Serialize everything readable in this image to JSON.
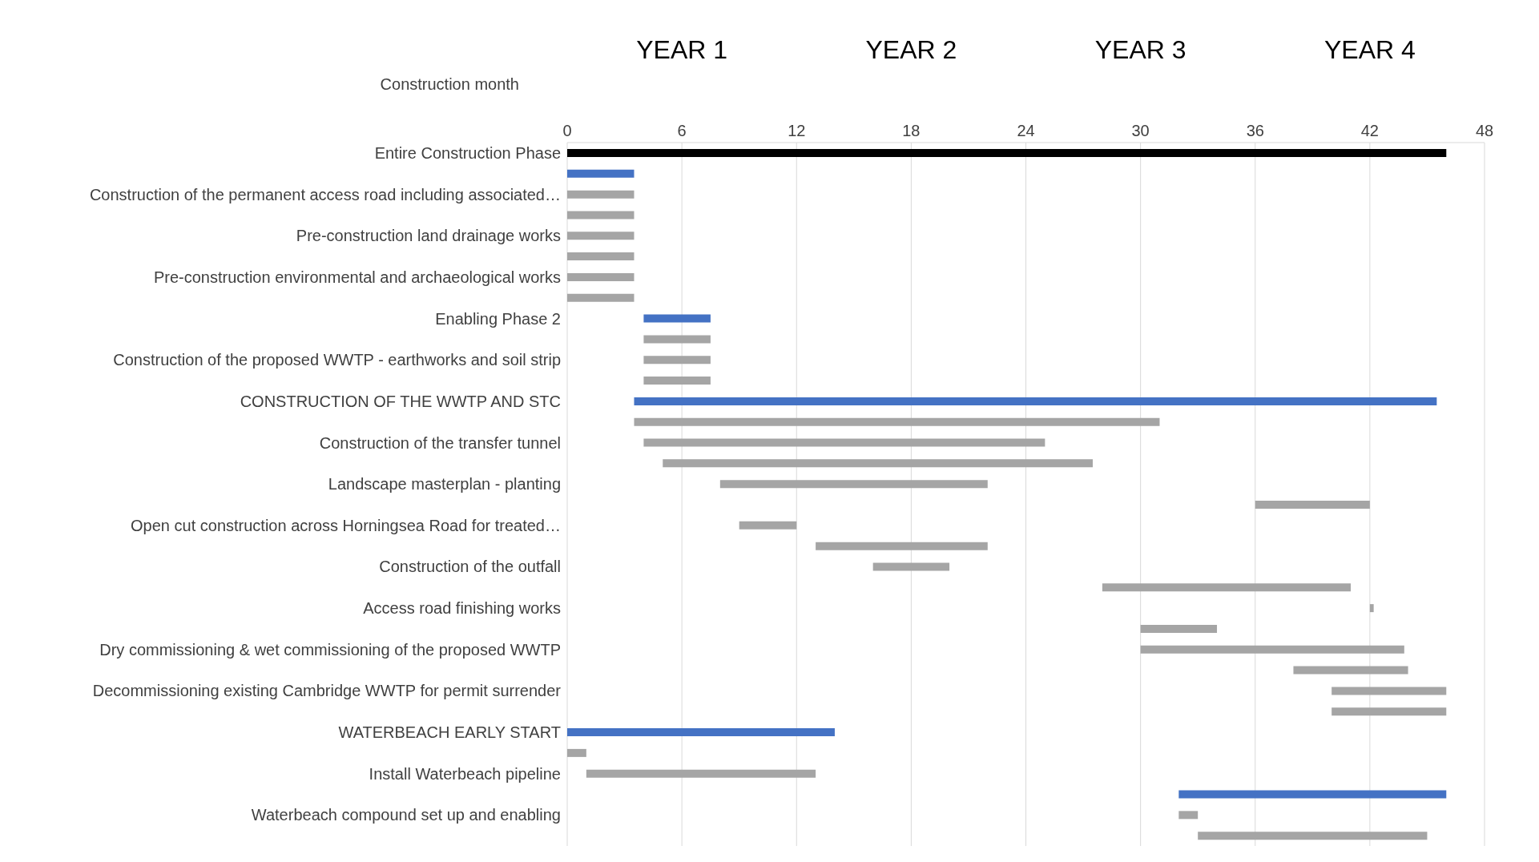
{
  "chart_data": {
    "type": "bar",
    "orientation": "horizontal",
    "xlabel": "Construction month",
    "annotations": [
      "YEAR 1",
      "YEAR 2",
      "YEAR 3",
      "YEAR 4"
    ],
    "categories": [
      "Entire Construction Phase",
      null,
      "Construction of the permanent access road including associated…",
      null,
      "Pre-construction land drainage works",
      null,
      "Pre-construction environmental and archaeological works",
      null,
      "Enabling Phase 2",
      null,
      "Construction of the proposed WWTP - earthworks and soil strip",
      null,
      "CONSTRUCTION OF THE WWTP AND STC",
      null,
      "Construction of the transfer tunnel",
      null,
      "Landscape masterplan - planting",
      null,
      "Open cut construction across Horningsea Road for treated…",
      null,
      "Construction of the outfall",
      null,
      "Access road finishing works",
      null,
      "Dry commissioning & wet commissioning of the proposed WWTP",
      null,
      "Decommissioning existing Cambridge WWTP for permit surrender",
      null,
      "WATERBEACH EARLY START",
      null,
      "Install Waterbeach pipeline",
      null,
      "Waterbeach compound set up and enabling",
      null
    ],
    "base": [
      0,
      0,
      0,
      0,
      0,
      0,
      0,
      0,
      4,
      4,
      4,
      4,
      3.5,
      3.5,
      4,
      5,
      8,
      36,
      9,
      13,
      16,
      28,
      42,
      30,
      30,
      38,
      40,
      40,
      0,
      0,
      1,
      32,
      32,
      33
    ],
    "values": [
      46,
      3.5,
      3.5,
      3.5,
      3.5,
      3.5,
      3.5,
      3.5,
      3.5,
      3.5,
      3.5,
      3.5,
      42,
      27.5,
      21,
      22.5,
      14,
      6,
      3,
      9,
      4,
      13,
      0.2,
      4,
      13.8,
      6,
      6,
      6,
      14,
      1,
      12,
      14,
      1,
      12
    ],
    "colors": [
      "#000000",
      "#4472c4",
      "#a5a5a5",
      "#a5a5a5",
      "#a5a5a5",
      "#a5a5a5",
      "#a5a5a5",
      "#a5a5a5",
      "#4472c4",
      "#a5a5a5",
      "#a5a5a5",
      "#a5a5a5",
      "#4472c4",
      "#a5a5a5",
      "#a5a5a5",
      "#a5a5a5",
      "#a5a5a5",
      "#a5a5a5",
      "#a5a5a5",
      "#a5a5a5",
      "#a5a5a5",
      "#a5a5a5",
      "#a5a5a5",
      "#a5a5a5",
      "#a5a5a5",
      "#a5a5a5",
      "#a5a5a5",
      "#a5a5a5",
      "#4472c4",
      "#a5a5a5",
      "#a5a5a5",
      "#4472c4",
      "#a5a5a5",
      "#a5a5a5"
    ],
    "xlim": [
      0,
      48
    ],
    "xticks": [
      0,
      6,
      12,
      18,
      24,
      30,
      36,
      42,
      48
    ],
    "grid": "x"
  }
}
